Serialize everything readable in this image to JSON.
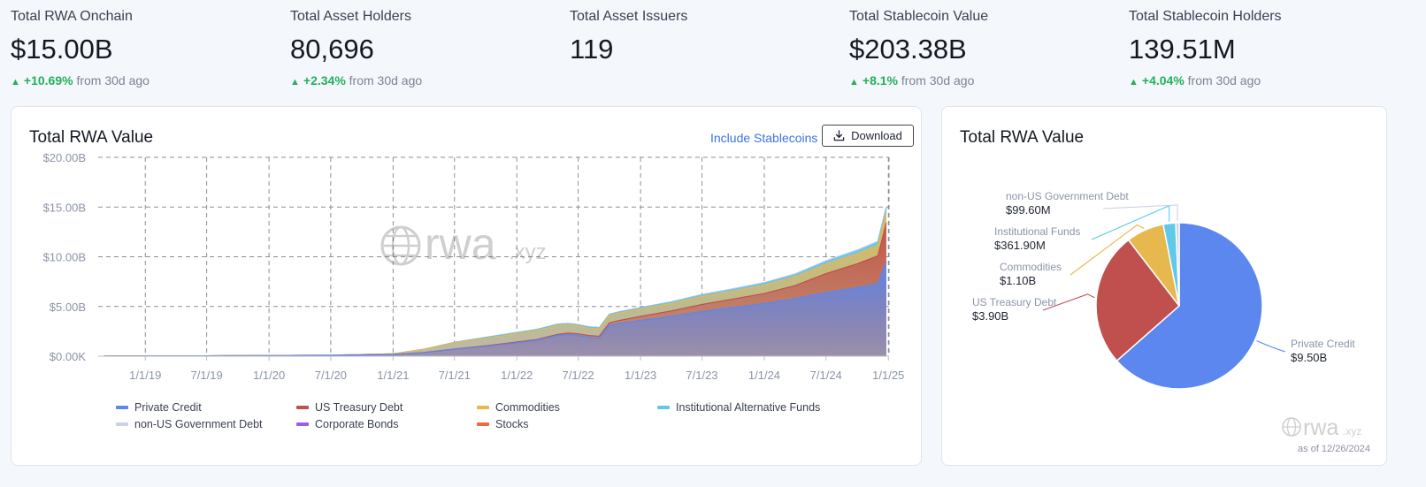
{
  "stats": [
    {
      "label": "Total RWA Onchain",
      "value": "$15.00B",
      "change": "+10.69%",
      "suffix": "from 30d ago"
    },
    {
      "label": "Total Asset Holders",
      "value": "80,696",
      "change": "+2.34%",
      "suffix": "from 30d ago"
    },
    {
      "label": "Total Asset Issuers",
      "value": "119",
      "change": "",
      "suffix": ""
    },
    {
      "label": "Total Stablecoin Value",
      "value": "$203.38B",
      "change": "+8.1%",
      "suffix": "from 30d ago"
    },
    {
      "label": "Total Stablecoin Holders",
      "value": "139.51M",
      "change": "+4.04%",
      "suffix": "from 30d ago"
    }
  ],
  "left_card": {
    "title": "Total RWA Value",
    "toggle_label": "Include Stablecoins",
    "download_label": "Download"
  },
  "right_card": {
    "title": "Total RWA Value",
    "as_of": "as of 12/26/2024"
  },
  "watermark": {
    "main": "rwa",
    "suffix": ".xyz"
  },
  "colors": {
    "accent": "#3a73e8",
    "positive": "#22b05a",
    "private_credit": "#5b87ee",
    "us_treasury": "#c0504d",
    "commodities": "#e6b84e",
    "institutional": "#5fc9ea",
    "non_us_gov": "#c9d3e3",
    "corporate_bonds": "#9b5de5",
    "stocks": "#ee6a3e"
  },
  "chart_data": [
    {
      "type": "area",
      "stacked": true,
      "title": "Total RWA Value",
      "y_ticks": [
        "$0.00K",
        "$5.00B",
        "$10.00B",
        "$15.00B",
        "$20.00B"
      ],
      "ylim": [
        0,
        20
      ],
      "x_ticks": [
        "1/1/19",
        "7/1/19",
        "1/1/20",
        "7/1/20",
        "1/1/21",
        "7/1/21",
        "1/1/22",
        "7/1/22",
        "1/1/23",
        "7/1/23",
        "1/1/24",
        "7/1/24",
        "1/1/25"
      ],
      "x_tick_dates": [
        "2019-01-01",
        "2019-07-01",
        "2020-01-01",
        "2020-07-01",
        "2021-01-01",
        "2021-07-01",
        "2022-01-01",
        "2022-07-01",
        "2023-01-01",
        "2023-07-01",
        "2024-01-01",
        "2024-07-01",
        "2025-01-01"
      ],
      "x_start": "2018-08-15",
      "x_end": "2025-01-03",
      "grid": true,
      "legend_placement": "bottom",
      "x": [
        "2018-09-01",
        "2019-01-01",
        "2019-07-01",
        "2020-01-01",
        "2020-07-01",
        "2021-01-01",
        "2021-04-01",
        "2021-07-01",
        "2021-10-01",
        "2022-01-01",
        "2022-03-01",
        "2022-05-01",
        "2022-06-01",
        "2022-07-01",
        "2022-08-01",
        "2022-09-01",
        "2022-10-01",
        "2022-11-01",
        "2023-01-01",
        "2023-04-01",
        "2023-07-01",
        "2023-10-01",
        "2024-01-01",
        "2024-04-01",
        "2024-07-01",
        "2024-10-01",
        "2024-12-01",
        "2024-12-26"
      ],
      "series": [
        {
          "name": "Private Credit",
          "color_key": "private_credit",
          "values": [
            0.02,
            0.03,
            0.04,
            0.06,
            0.08,
            0.18,
            0.35,
            0.7,
            1.0,
            1.35,
            1.6,
            2.1,
            2.2,
            2.1,
            1.9,
            1.8,
            3.1,
            3.3,
            3.6,
            4.0,
            4.5,
            4.9,
            5.3,
            5.8,
            6.4,
            6.9,
            7.3,
            9.5
          ]
        },
        {
          "name": "US Treasury Debt",
          "color_key": "us_treasury",
          "values": [
            0,
            0,
            0,
            0,
            0,
            0.01,
            0.02,
            0.03,
            0.05,
            0.07,
            0.08,
            0.1,
            0.12,
            0.15,
            0.18,
            0.2,
            0.25,
            0.3,
            0.4,
            0.55,
            0.7,
            0.85,
            1.0,
            1.3,
            1.9,
            2.4,
            2.8,
            3.9
          ]
        },
        {
          "name": "Commodities",
          "color_key": "commodities",
          "values": [
            0.0,
            0.0,
            0.0,
            0.01,
            0.02,
            0.05,
            0.3,
            0.6,
            0.75,
            0.85,
            0.9,
            0.9,
            0.85,
            0.8,
            0.75,
            0.75,
            0.75,
            0.75,
            0.75,
            0.75,
            0.8,
            0.8,
            0.85,
            0.9,
            0.95,
            1.0,
            1.05,
            1.1
          ]
        },
        {
          "name": "Institutional Alternative Funds",
          "color_key": "institutional",
          "values": [
            0,
            0,
            0,
            0,
            0,
            0,
            0.02,
            0.05,
            0.08,
            0.1,
            0.1,
            0.1,
            0.1,
            0.1,
            0.1,
            0.1,
            0.1,
            0.1,
            0.1,
            0.12,
            0.15,
            0.15,
            0.18,
            0.2,
            0.25,
            0.28,
            0.3,
            0.36
          ]
        },
        {
          "name": "non-US Government Debt",
          "color_key": "non_us_gov",
          "values": [
            0,
            0,
            0,
            0,
            0,
            0,
            0,
            0,
            0.01,
            0.01,
            0.01,
            0.02,
            0.02,
            0.02,
            0.02,
            0.02,
            0.02,
            0.03,
            0.03,
            0.04,
            0.05,
            0.06,
            0.06,
            0.07,
            0.08,
            0.09,
            0.09,
            0.1
          ]
        },
        {
          "name": "Corporate Bonds",
          "color_key": "corporate_bonds",
          "values": [
            0,
            0,
            0,
            0,
            0,
            0,
            0,
            0,
            0,
            0,
            0,
            0,
            0,
            0,
            0,
            0,
            0,
            0,
            0,
            0,
            0,
            0,
            0,
            0,
            0,
            0,
            0,
            0
          ]
        },
        {
          "name": "Stocks",
          "color_key": "stocks",
          "values": [
            0,
            0,
            0,
            0,
            0,
            0,
            0,
            0,
            0,
            0,
            0,
            0,
            0,
            0,
            0,
            0,
            0,
            0,
            0,
            0,
            0,
            0,
            0,
            0,
            0,
            0,
            0,
            0
          ]
        }
      ]
    },
    {
      "type": "pie",
      "title": "Total RWA Value",
      "slices": [
        {
          "label": "Private Credit",
          "value_label": "$9.50B",
          "value": 9.5,
          "color_key": "private_credit"
        },
        {
          "label": "US Treasury Debt",
          "value_label": "$3.90B",
          "value": 3.9,
          "color_key": "us_treasury"
        },
        {
          "label": "Commodities",
          "value_label": "$1.10B",
          "value": 1.1,
          "color_key": "commodities"
        },
        {
          "label": "Institutional Funds",
          "value_label": "$361.90M",
          "value": 0.3619,
          "color_key": "institutional"
        },
        {
          "label": "non-US Government Debt",
          "value_label": "$99.60M",
          "value": 0.0996,
          "color_key": "non_us_gov"
        }
      ]
    }
  ]
}
